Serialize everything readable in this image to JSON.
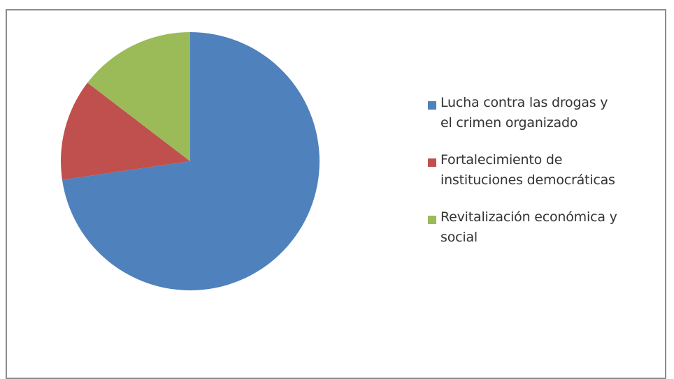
{
  "chart_data": {
    "type": "pie",
    "title": "",
    "categories": [
      "Lucha contra las drogas y\nel crimen organizado",
      "Fortalecimiento de\ninstituciones democráticas",
      "Revitalización económica y\nsocial"
    ],
    "values": [
      72.7,
      12.7,
      14.6
    ],
    "colors": [
      "#4f81bd",
      "#c0504d",
      "#9bbb59"
    ],
    "legend_position": "right"
  }
}
